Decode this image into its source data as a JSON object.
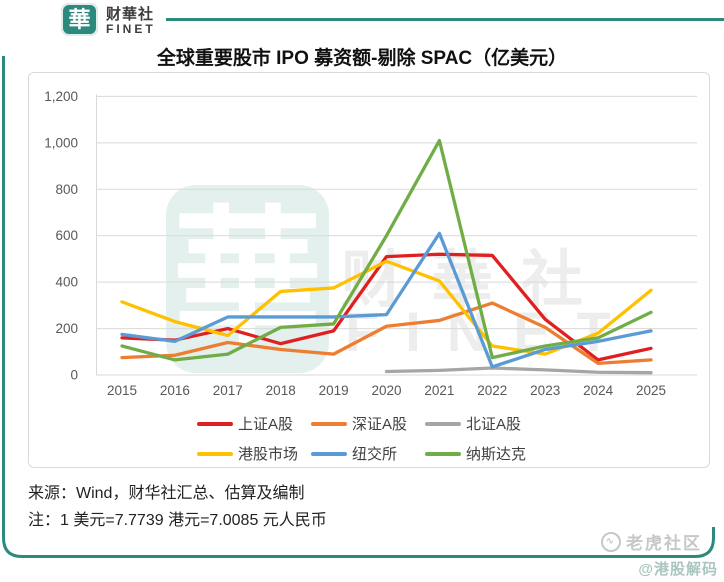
{
  "brand": {
    "logo_glyph": "華",
    "name_cn": "财華社",
    "name_en": "FINET"
  },
  "title": "全球重要股市 IPO 募资额-剔除 SPAC（亿美元）",
  "chart_data": {
    "type": "line",
    "categories": [
      "2015",
      "2016",
      "2017",
      "2018",
      "2019",
      "2020",
      "2021",
      "2022",
      "2023",
      "2024",
      "2025"
    ],
    "series": [
      {
        "name": "上证A股",
        "color": "#E02020",
        "values": [
          160,
          150,
          200,
          135,
          190,
          510,
          520,
          515,
          240,
          65,
          115
        ]
      },
      {
        "name": "深证A股",
        "color": "#ED7D31",
        "values": [
          75,
          85,
          140,
          110,
          90,
          210,
          235,
          310,
          205,
          50,
          65
        ]
      },
      {
        "name": "北证A股",
        "color": "#A6A6A6",
        "values": [
          null,
          null,
          null,
          null,
          null,
          15,
          20,
          30,
          22,
          12,
          10
        ]
      },
      {
        "name": "港股市场",
        "color": "#FFC000",
        "values": [
          315,
          230,
          170,
          360,
          375,
          490,
          405,
          125,
          90,
          180,
          365
        ]
      },
      {
        "name": "纽交所",
        "color": "#5B9BD5",
        "values": [
          175,
          145,
          250,
          250,
          250,
          260,
          610,
          35,
          110,
          145,
          190
        ]
      },
      {
        "name": "纳斯达克",
        "color": "#70AD47",
        "values": [
          125,
          65,
          90,
          205,
          220,
          600,
          1010,
          75,
          125,
          160,
          270
        ]
      }
    ],
    "ylim": [
      0,
      1200
    ],
    "ytick_step": 200,
    "grid": true,
    "legend_position": "bottom"
  },
  "watermarks": {
    "chart_logo_glyph": "華",
    "chart_text_cn": "财華社",
    "chart_text_en": "FINET",
    "community": "老虎社区",
    "handle": "@港股解码"
  },
  "footer": {
    "source": "来源：Wind，财华社汇总、估算及编制",
    "note": "注：1 美元=7.7739 港元=7.0085 元人民币"
  },
  "colors": {
    "brand_teal": "#2B8A7D",
    "card_border": "#D9D9D9",
    "grid_line": "#D9D9D9",
    "tick_text": "#595959",
    "legend_text": "#404040"
  }
}
